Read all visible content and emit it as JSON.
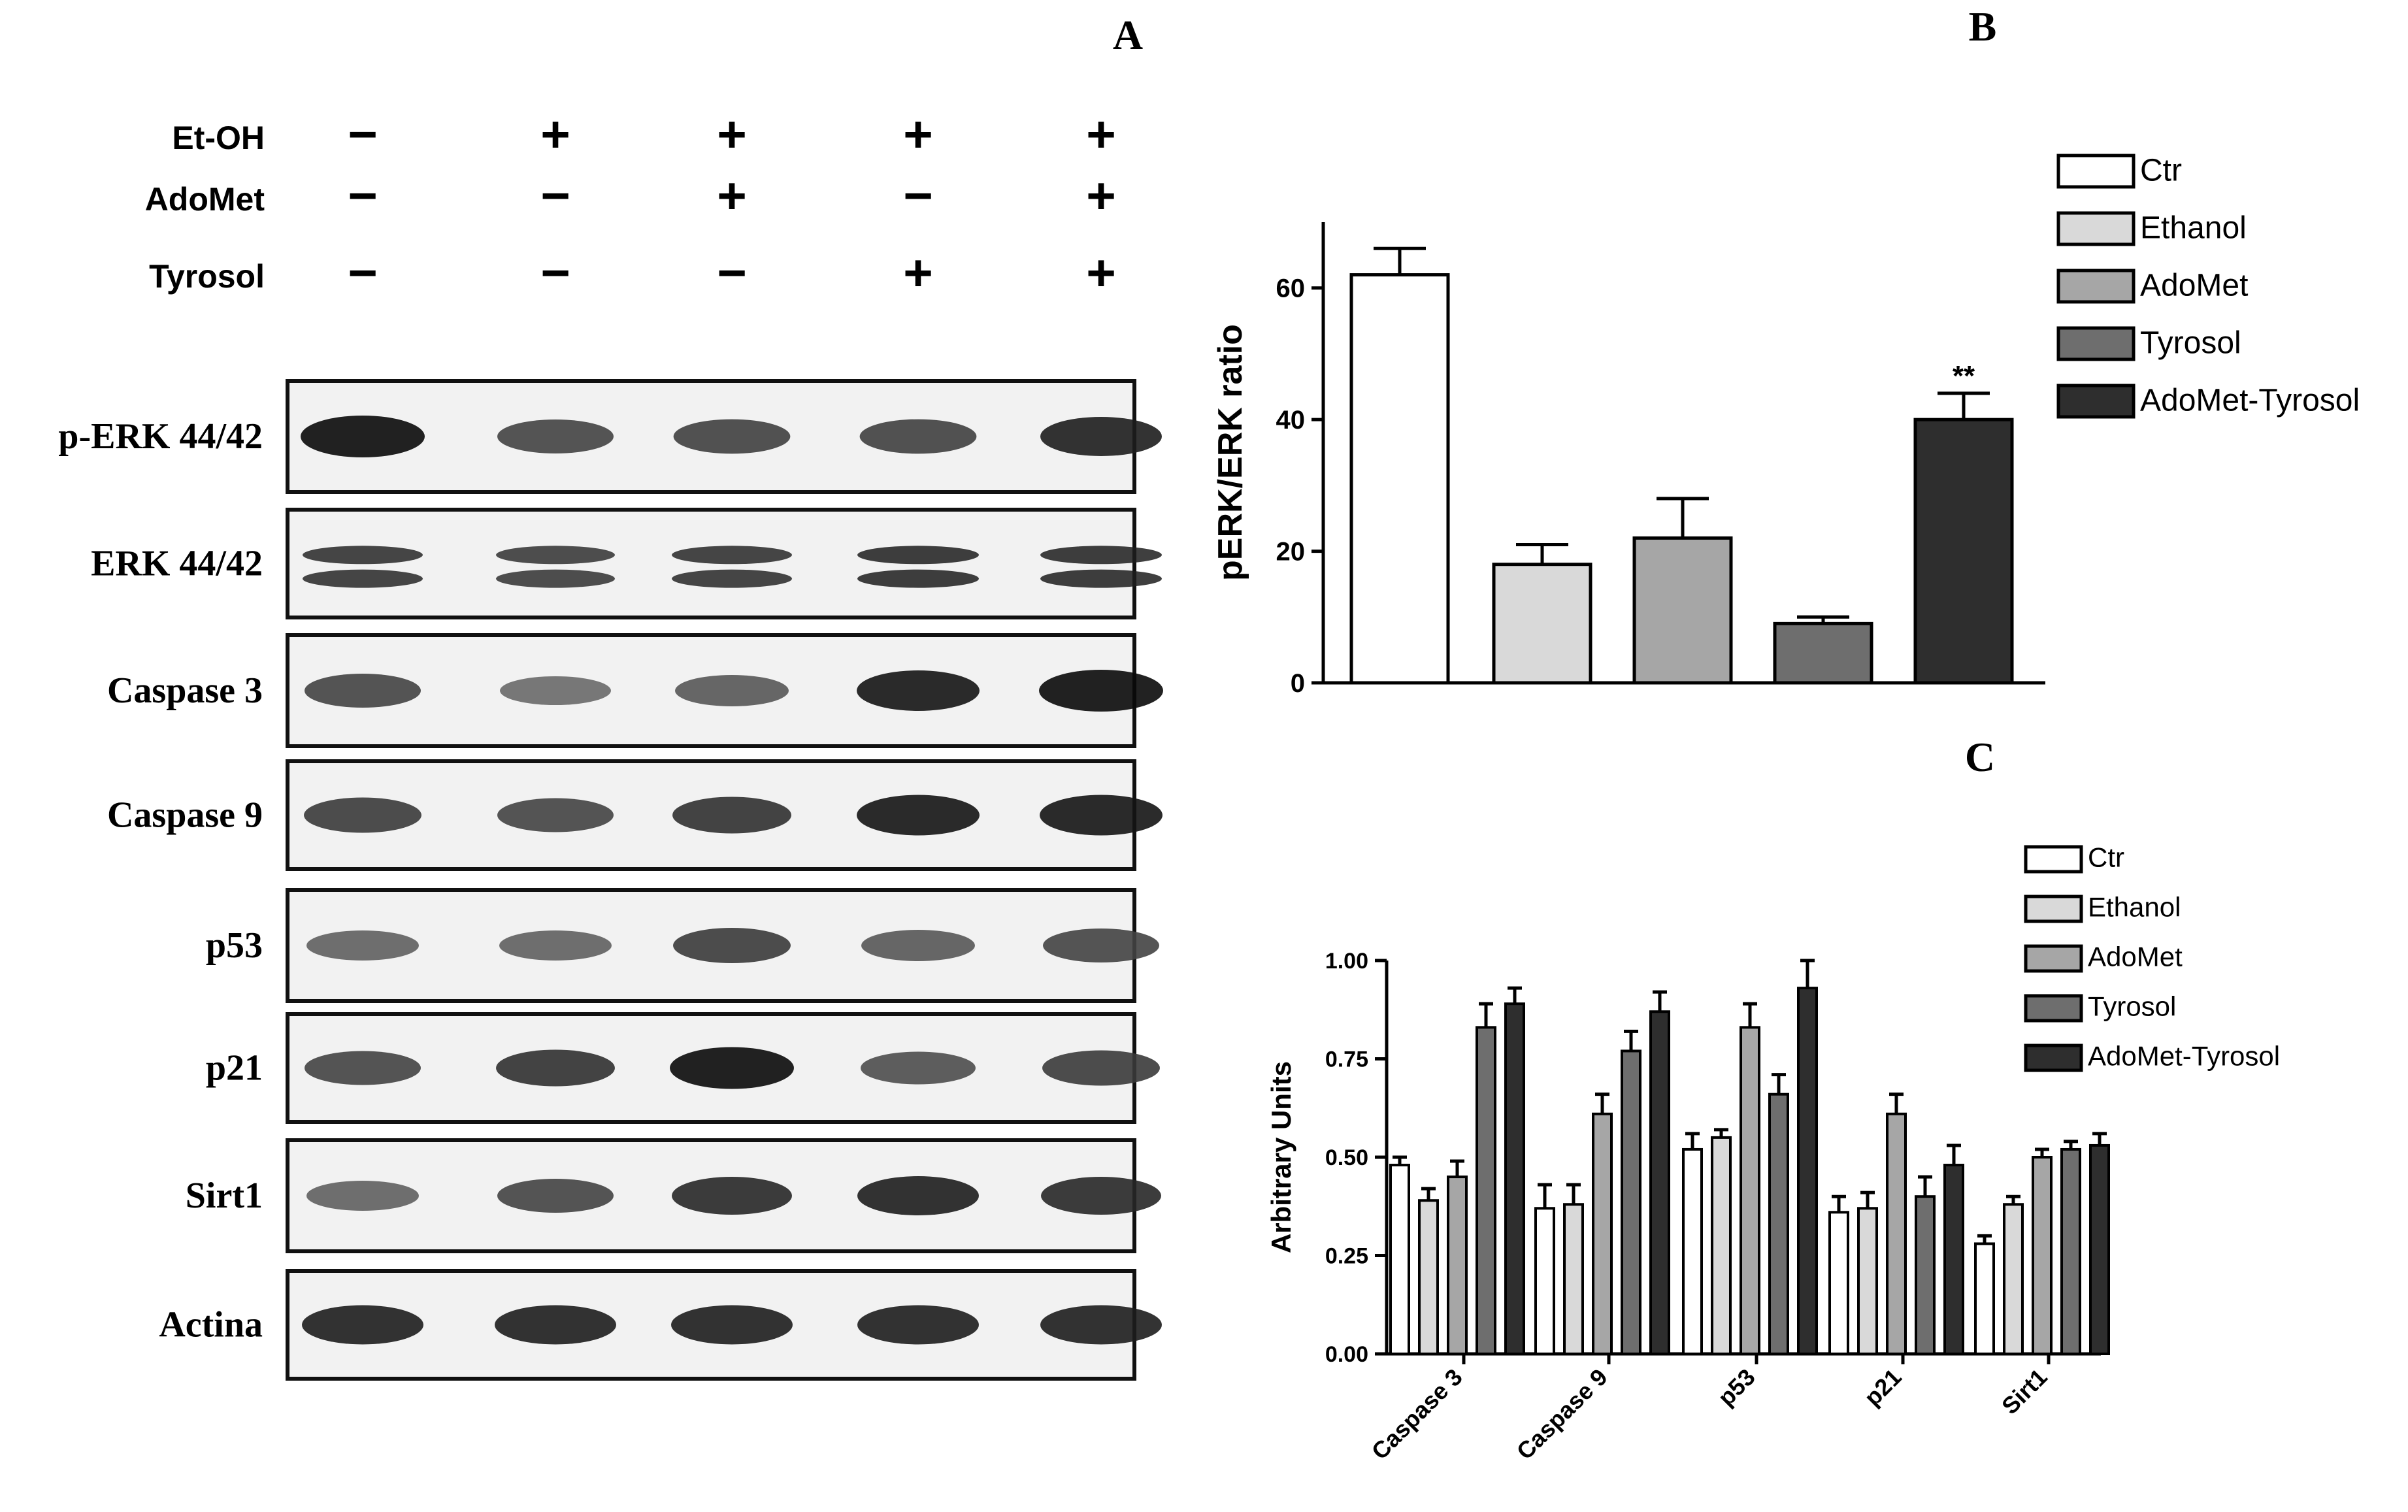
{
  "panel_a": {
    "letter": "A",
    "treatment_rows": [
      {
        "label": "Et-OH",
        "signs": [
          "−",
          "+",
          "+",
          "+",
          "+"
        ]
      },
      {
        "label": "AdoMet",
        "signs": [
          "−",
          "−",
          "+",
          "−",
          "+"
        ]
      },
      {
        "label": "Tyrosol",
        "signs": [
          "−",
          "−",
          "−",
          "+",
          "+"
        ]
      }
    ],
    "blots": [
      {
        "label": "p-ERK 44/42",
        "bands": [
          1.0,
          0.7,
          0.72,
          0.72,
          0.9
        ],
        "double": false
      },
      {
        "label": "ERK 44/42",
        "bands": [
          0.85,
          0.8,
          0.85,
          0.9,
          0.9
        ],
        "double": true
      },
      {
        "label": "Caspase 3",
        "bands": [
          0.7,
          0.5,
          0.6,
          0.95,
          1.0
        ],
        "double": false
      },
      {
        "label": "Caspase 9",
        "bands": [
          0.75,
          0.7,
          0.8,
          0.95,
          0.95
        ],
        "double": false
      },
      {
        "label": "p53",
        "bands": [
          0.55,
          0.55,
          0.75,
          0.6,
          0.7
        ],
        "double": false
      },
      {
        "label": "p21",
        "bands": [
          0.7,
          0.8,
          1.0,
          0.65,
          0.75
        ],
        "double": false
      },
      {
        "label": "Sirt1",
        "bands": [
          0.55,
          0.7,
          0.85,
          0.9,
          0.85
        ],
        "double": false
      },
      {
        "label": "Actina",
        "bands": [
          0.9,
          0.9,
          0.9,
          0.9,
          0.9
        ],
        "double": false
      }
    ]
  },
  "chart_data": [
    {
      "panel": "B",
      "type": "bar",
      "title": "",
      "xlabel": "",
      "ylabel": "pERK/ERK ratio",
      "ylim": [
        0,
        70
      ],
      "yticks": [
        "0",
        "20",
        "40",
        "60"
      ],
      "categories": [
        "Ctr",
        "Ethanol",
        "AdoMet",
        "Tyrosol",
        "AdoMet-Tyrosol"
      ],
      "values": [
        62,
        18,
        22,
        9,
        40
      ],
      "errors": [
        4,
        3,
        6,
        1,
        4
      ],
      "annotations": [
        "",
        "",
        "",
        "",
        "**"
      ],
      "colors": [
        "#ffffff",
        "#d9d9d9",
        "#a6a6a6",
        "#6e6e6e",
        "#2e2e2e"
      ],
      "legend": [
        "Ctr",
        "Ethanol",
        "AdoMet",
        "Tyrosol",
        "AdoMet-Tyrosol"
      ],
      "legend_placement": "top-right",
      "grid": false
    },
    {
      "panel": "C",
      "type": "bar",
      "title": "",
      "xlabel": "",
      "ylabel": "Arbitrary Units",
      "ylim": [
        0,
        1.0
      ],
      "yticks": [
        "0.00",
        "0.25",
        "0.50",
        "0.75",
        "1.00"
      ],
      "categories": [
        "Caspase 3",
        "Caspase 9",
        "p53",
        "p21",
        "Sirt1"
      ],
      "series": [
        {
          "name": "Ctr",
          "values": [
            0.48,
            0.37,
            0.52,
            0.36,
            0.28
          ],
          "errors": [
            0.02,
            0.06,
            0.04,
            0.04,
            0.02
          ]
        },
        {
          "name": "Ethanol",
          "values": [
            0.39,
            0.38,
            0.55,
            0.37,
            0.38
          ],
          "errors": [
            0.03,
            0.05,
            0.02,
            0.04,
            0.02
          ]
        },
        {
          "name": "AdoMet",
          "values": [
            0.45,
            0.61,
            0.83,
            0.61,
            0.5
          ],
          "errors": [
            0.04,
            0.05,
            0.06,
            0.05,
            0.02
          ]
        },
        {
          "name": "Tyrosol",
          "values": [
            0.83,
            0.77,
            0.66,
            0.4,
            0.52
          ],
          "errors": [
            0.06,
            0.05,
            0.05,
            0.05,
            0.02
          ]
        },
        {
          "name": "AdoMet-Tyrosol",
          "values": [
            0.89,
            0.87,
            0.93,
            0.48,
            0.53
          ],
          "errors": [
            0.04,
            0.05,
            0.07,
            0.05,
            0.03
          ]
        }
      ],
      "colors": [
        "#ffffff",
        "#d9d9d9",
        "#a6a6a6",
        "#6e6e6e",
        "#2e2e2e"
      ],
      "legend_placement": "top-right",
      "grid": false
    }
  ],
  "labels": {
    "panel_b_letter": "B",
    "panel_c_letter": "C"
  }
}
